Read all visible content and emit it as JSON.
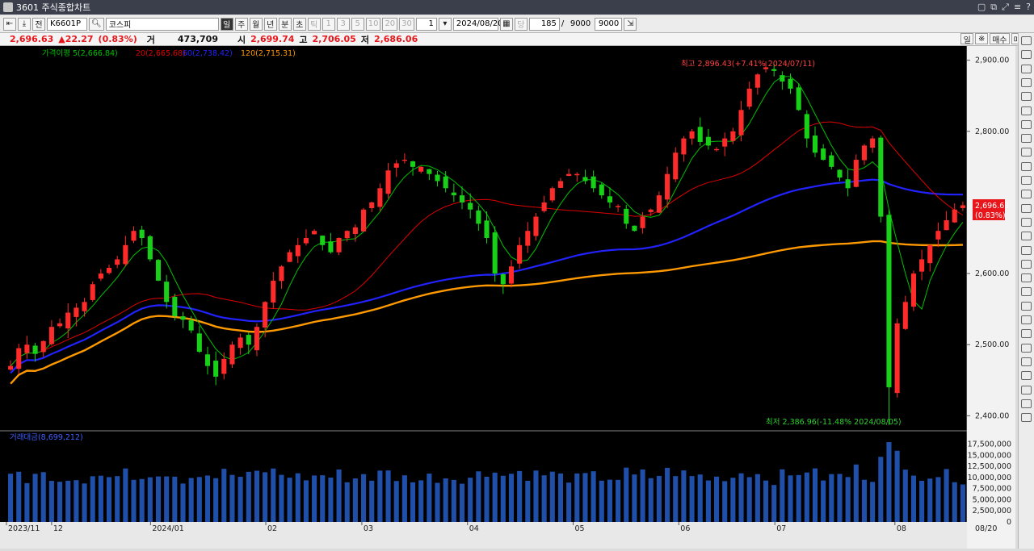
{
  "window": {
    "title": "3601 주식종합차트",
    "buttons": [
      "▢",
      "⧉",
      "⤢",
      "≡",
      "?"
    ]
  },
  "toolbar": {
    "code": "K6601P",
    "search_icon": "search-icon",
    "name": "코스피",
    "period_buttons": [
      "일",
      "주",
      "월",
      "년",
      "분",
      "초",
      "틱"
    ],
    "selected_period": "일",
    "tick_buttons": [
      "1",
      "3",
      "5",
      "10",
      "20",
      "30"
    ],
    "count_value": "1",
    "date": "2024/08/20",
    "calendar_icon": "calendar-icon",
    "ratio_label": "당",
    "view_count": "185",
    "slash": "/",
    "total": "9000",
    "max": "9000"
  },
  "infobar": {
    "price": "2,696.63",
    "change": "▲22.27",
    "change_pct": "(0.83%)",
    "volume_label": "거",
    "volume": "473,709",
    "open_label": "시",
    "open": "2,699.74",
    "high_label": "고",
    "high": "2,706.05",
    "low_label": "저",
    "low": "2,686.06",
    "right_buttons": [
      "일",
      "※",
      "매수",
      "매도"
    ]
  },
  "chart": {
    "legend_price": "가격이평 5(2,666.84)",
    "legend_ma20": "20(2,665.68)",
    "legend_ma60": "60(2,738.42)",
    "legend_ma120": "120(2,715.31)",
    "high_annotation": "최고 2,896.43(+7.41% 2024/07/11)",
    "low_annotation": "최저 2,386.96(-11.48% 2024/08/05)",
    "price_label": "2,696.63",
    "price_pct_label": "(0.83%)",
    "volume_legend": "거래대금(8,699,212)",
    "y_ticks": [
      "2,900.00",
      "2,800.00",
      "2,600.00",
      "2,500.00",
      "2,400.00"
    ],
    "volume_ticks": [
      "17,500,000",
      "15,000,000",
      "12,500,000",
      "10,000,000",
      "7,500,000",
      "5,000,000",
      "2,500,000",
      "0"
    ],
    "x_labels": [
      "2023/11",
      "12",
      "2024/01",
      "02",
      "03",
      "04",
      "05",
      "06",
      "07",
      "08"
    ],
    "x_end_label": "08/20",
    "colors": {
      "up": "#ff2a2a",
      "down": "#18d018",
      "ma5": "#00c000",
      "ma20": "#e00000",
      "ma60": "#2222ff",
      "ma120": "#ff9900"
    }
  },
  "chart_data": {
    "type": "candlestick",
    "title": "코스피",
    "ylim": [
      2380,
      2920
    ],
    "x": [
      "2023/11",
      "12",
      "2024/01",
      "02",
      "03",
      "04",
      "05",
      "06",
      "07",
      "08"
    ],
    "closes": [
      2470,
      2495,
      2500,
      2487,
      2505,
      2525,
      2530,
      2545,
      2552,
      2560,
      2585,
      2600,
      2608,
      2620,
      2640,
      2660,
      2650,
      2620,
      2590,
      2560,
      2540,
      2535,
      2520,
      2490,
      2470,
      2455,
      2480,
      2500,
      2510,
      2500,
      2525,
      2560,
      2590,
      2610,
      2630,
      2640,
      2650,
      2660,
      2640,
      2630,
      2650,
      2660,
      2665,
      2690,
      2700,
      2720,
      2745,
      2755,
      2760,
      2750,
      2750,
      2740,
      2730,
      2720,
      2710,
      2700,
      2690,
      2670,
      2650,
      2600,
      2585,
      2610,
      2640,
      2660,
      2680,
      2700,
      2720,
      2730,
      2740,
      2740,
      2730,
      2720,
      2710,
      2700,
      2695,
      2670,
      2660,
      2680,
      2690,
      2710,
      2740,
      2770,
      2790,
      2800,
      2785,
      2780,
      2775,
      2790,
      2800,
      2830,
      2860,
      2880,
      2890,
      2885,
      2870,
      2860,
      2830,
      2790,
      2770,
      2760,
      2750,
      2735,
      2720,
      2760,
      2780,
      2790,
      2680,
      2440,
      2530,
      2560,
      2600,
      2620,
      2640,
      2660,
      2675,
      2690,
      2696
    ],
    "moving_averages": [
      {
        "name": "5",
        "last": 2666.84
      },
      {
        "name": "20",
        "last": 2665.68
      },
      {
        "name": "60",
        "last": 2738.42
      },
      {
        "name": "120",
        "last": 2715.31
      }
    ],
    "high": {
      "value": 2896.43,
      "pct": 7.41,
      "date": "2024/07/11"
    },
    "low": {
      "value": 2386.96,
      "pct": -11.48,
      "date": "2024/08/05"
    },
    "last_close": 2696.63,
    "volume_ylim": [
      0,
      18500000
    ],
    "volume_last": 8699212
  }
}
